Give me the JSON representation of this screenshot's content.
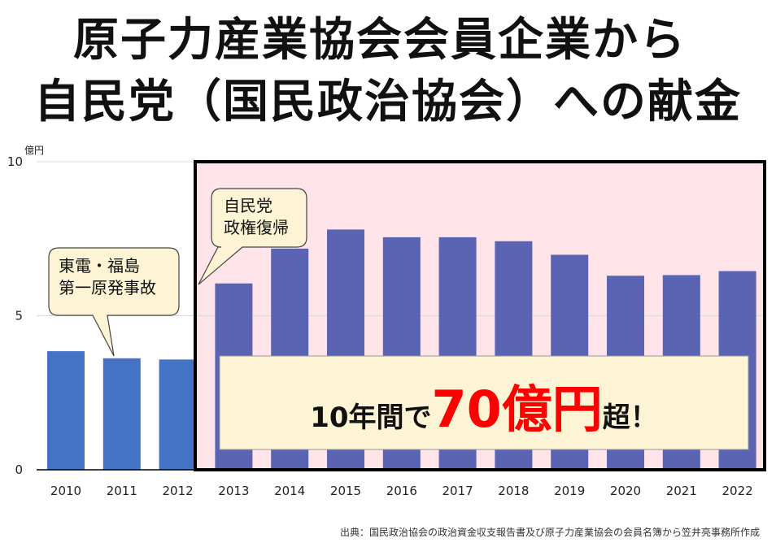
{
  "title": {
    "line1": "原子力産業協会会員企業から",
    "line2": "自民党（国民政治協会）への献金"
  },
  "chart_data": {
    "type": "bar",
    "y_unit": "億円",
    "ylim": [
      0,
      10
    ],
    "yticks": [
      "0",
      "5",
      "10"
    ],
    "categories": [
      "2010",
      "2011",
      "2012",
      "2013",
      "2014",
      "2015",
      "2016",
      "2017",
      "2018",
      "2019",
      "2020",
      "2021",
      "2022"
    ],
    "values": [
      3.85,
      3.62,
      3.58,
      6.05,
      7.18,
      7.8,
      7.55,
      7.55,
      7.42,
      6.98,
      6.3,
      6.32,
      6.45
    ],
    "grid": "horizontal",
    "colors": {
      "bar_pre2013": "#4472c4",
      "bar_post2013": "#5b64b3",
      "highlight_bg": "#ffe4ea",
      "highlight_border": "#000000"
    },
    "callouts": [
      {
        "lines": [
          "東電・福島",
          "第一原発事故"
        ]
      },
      {
        "lines": [
          "自民党",
          "政権復帰"
        ]
      }
    ],
    "banner": {
      "pre": "10年間で",
      "emph": "70億円",
      "post": "超！",
      "emph_color": "#ff0000"
    }
  },
  "source": "出典：国民政治協会の政治資金収支報告書及び原子力産業協会の会員名簿から笠井亮事務所作成"
}
